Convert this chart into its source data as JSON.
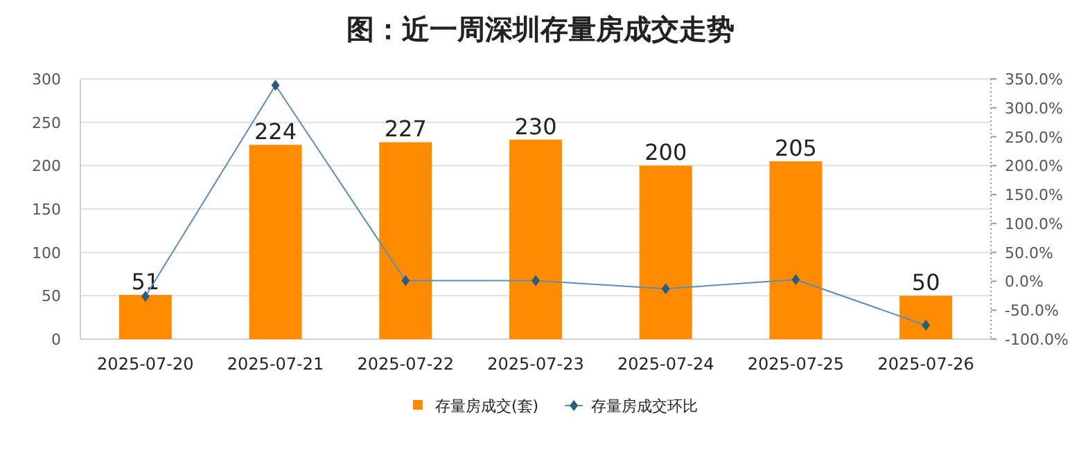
{
  "chart_data": {
    "type": "bar",
    "title": "图：近一周深圳存量房成交走势",
    "categories": [
      "2025-07-20",
      "2025-07-21",
      "2025-07-22",
      "2025-07-23",
      "2025-07-24",
      "2025-07-25",
      "2025-07-26"
    ],
    "series": [
      {
        "name": "存量房成交(套)",
        "color": "#ff8c00",
        "values": [
          51,
          224,
          227,
          230,
          200,
          205,
          50
        ],
        "value_labels": [
          "51",
          "224",
          "227",
          "230",
          "200",
          "205",
          "50"
        ]
      },
      {
        "name": "存量房成交环比",
        "type": "line",
        "axis": "y2",
        "color": "#5b8db8",
        "marker": "diamond",
        "values": [
          -26,
          339,
          1,
          1,
          -13,
          3,
          -76
        ]
      }
    ],
    "ylim": [
      0,
      300
    ],
    "yticks": [
      0,
      50,
      100,
      150,
      200,
      250,
      300
    ],
    "y2lim": [
      -100,
      350
    ],
    "y2ticks": [
      {
        "value": -100,
        "label": "-100.0%"
      },
      {
        "value": -50,
        "label": "-50.0%"
      },
      {
        "value": 0,
        "label": "0.0%"
      },
      {
        "value": 50,
        "label": "50.0%"
      },
      {
        "value": 100,
        "label": "100.0%"
      },
      {
        "value": 150,
        "label": "150.0%"
      },
      {
        "value": 200,
        "label": "200.0%"
      },
      {
        "value": 250,
        "label": "250.0%"
      },
      {
        "value": 300,
        "label": "300.0%"
      },
      {
        "value": 350,
        "label": "350.0%"
      }
    ],
    "grid": "y",
    "legend": "bottom"
  }
}
